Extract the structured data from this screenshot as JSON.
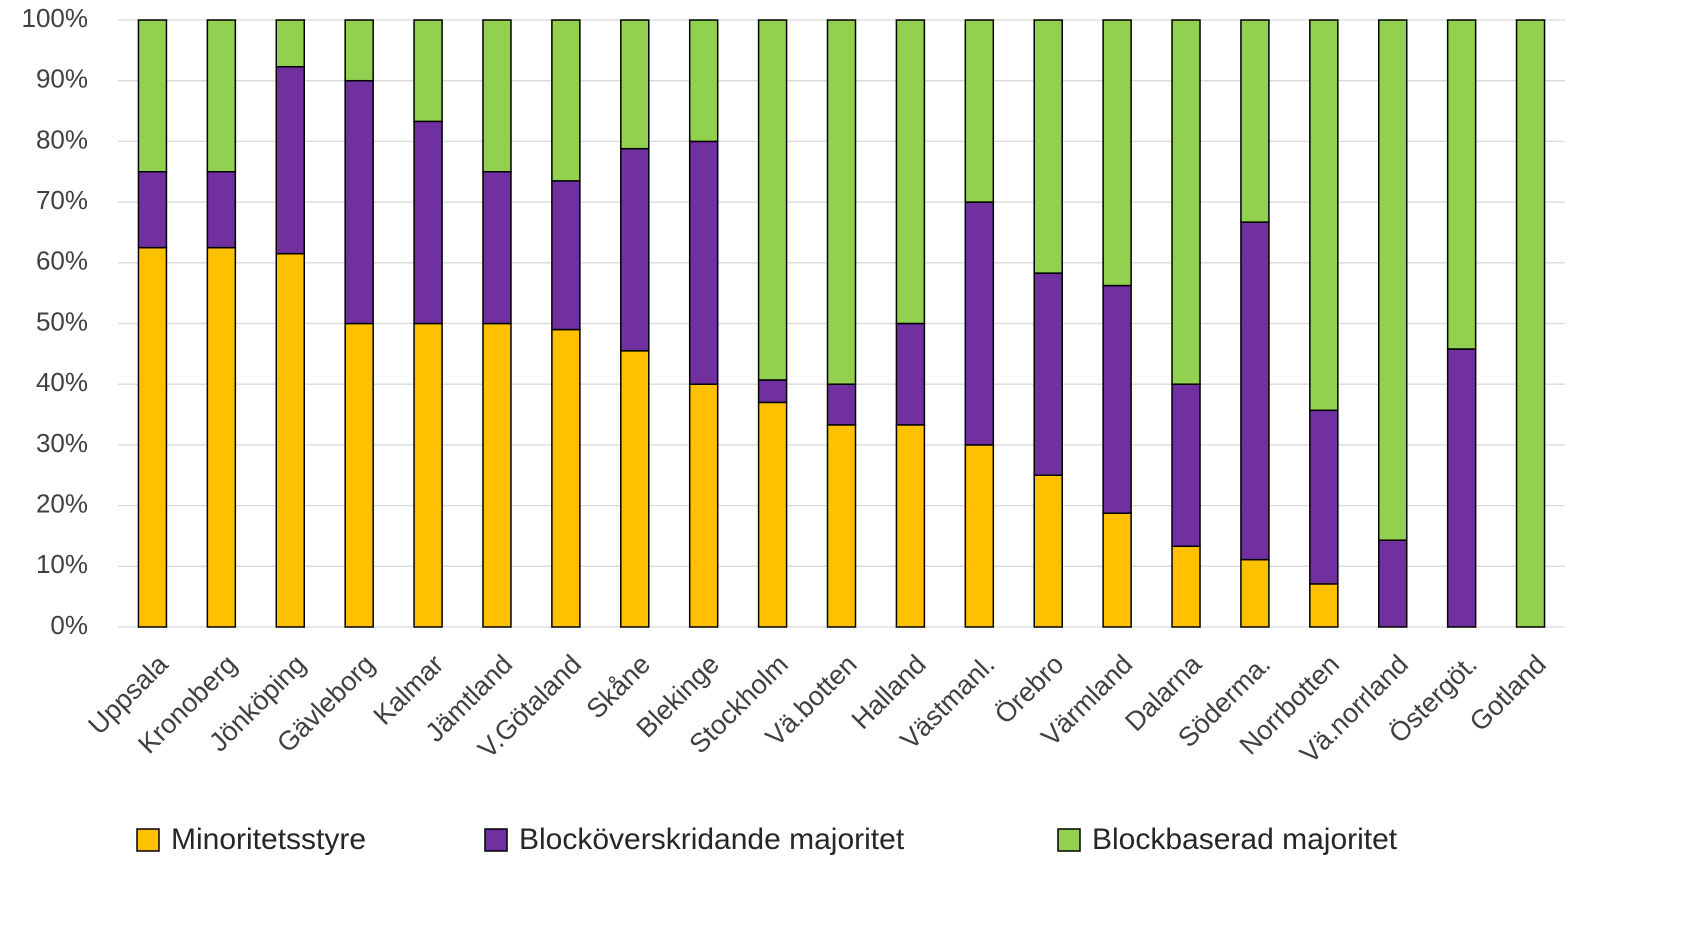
{
  "chart_data": {
    "type": "stacked_bar",
    "categories": [
      "Uppsala",
      "Kronoberg",
      "Jönköping",
      "Gävleborg",
      "Kalmar",
      "Jämtland",
      "V.Götaland",
      "Skåne",
      "Blekinge",
      "Stockholm",
      "Vä.botten",
      "Halland",
      "Västmanl.",
      "Örebro",
      "Värmland",
      "Dalarna",
      "Söderma.",
      "Norrbotten",
      "Vä.norrland",
      "Östergöt.",
      "Gotland"
    ],
    "series": [
      {
        "name": "Minoritetsstyre",
        "color": "#FFC000",
        "values": [
          62.5,
          62.5,
          61.5,
          50,
          50,
          50,
          49,
          45.5,
          40,
          37,
          33.3,
          33.3,
          30,
          25,
          18.75,
          13.3,
          11.1,
          7.1,
          0,
          0,
          0
        ]
      },
      {
        "name": "Blocköverskridande majoritet",
        "color": "#7030A0",
        "values": [
          12.5,
          12.5,
          30.8,
          40,
          33.3,
          25,
          24.5,
          33.3,
          40,
          3.7,
          6.7,
          16.7,
          40,
          33.3,
          37.5,
          26.7,
          55.6,
          28.6,
          14.3,
          45.8,
          0
        ]
      },
      {
        "name": "Blockbaserad majoritet",
        "color": "#92D050",
        "values": [
          25,
          25,
          7.7,
          10,
          16.7,
          25,
          26.5,
          21.2,
          20,
          59.3,
          60,
          50,
          30,
          41.7,
          43.75,
          60,
          33.3,
          64.3,
          85.7,
          54.2,
          100
        ]
      }
    ],
    "ylim": [
      0,
      100
    ],
    "yticks": [
      {
        "value": 0,
        "label": "0%"
      },
      {
        "value": 10,
        "label": "10%"
      },
      {
        "value": 20,
        "label": "20%"
      },
      {
        "value": 30,
        "label": "30%"
      },
      {
        "value": 40,
        "label": "40%"
      },
      {
        "value": 50,
        "label": "50%"
      },
      {
        "value": 60,
        "label": "60%"
      },
      {
        "value": 70,
        "label": "70%"
      },
      {
        "value": 80,
        "label": "80%"
      },
      {
        "value": 90,
        "label": "90%"
      },
      {
        "value": 100,
        "label": "100%"
      }
    ],
    "grid": true,
    "legend": "bottom"
  }
}
